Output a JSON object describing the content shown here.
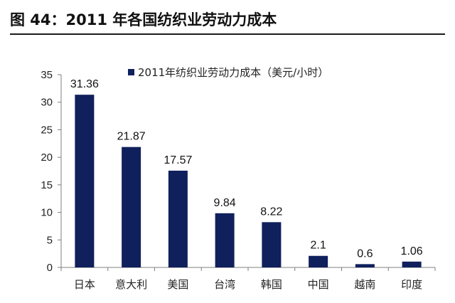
{
  "figure": {
    "title": "图 44：2011 年各国纺织业劳动力成本"
  },
  "chart_data": {
    "type": "bar",
    "title": "",
    "xlabel": "",
    "ylabel": "",
    "categories": [
      "日本",
      "意大利",
      "美国",
      "台湾",
      "韩国",
      "中国",
      "越南",
      "印度"
    ],
    "series": [
      {
        "name": "2011年纺织业劳动力成本（美元/小时）",
        "values": [
          31.36,
          21.87,
          17.57,
          9.84,
          8.22,
          2.1,
          0.6,
          1.06
        ],
        "value_labels": [
          "31.36",
          "21.87",
          "17.57",
          "9.84",
          "8.22",
          "2.1",
          "0.6",
          "1.06"
        ],
        "color": "#10205c"
      }
    ],
    "ylim": [
      0,
      35
    ],
    "yticks": [
      0,
      5,
      10,
      15,
      20,
      25,
      30,
      35
    ],
    "grid": false,
    "legend_position": "top-center"
  }
}
